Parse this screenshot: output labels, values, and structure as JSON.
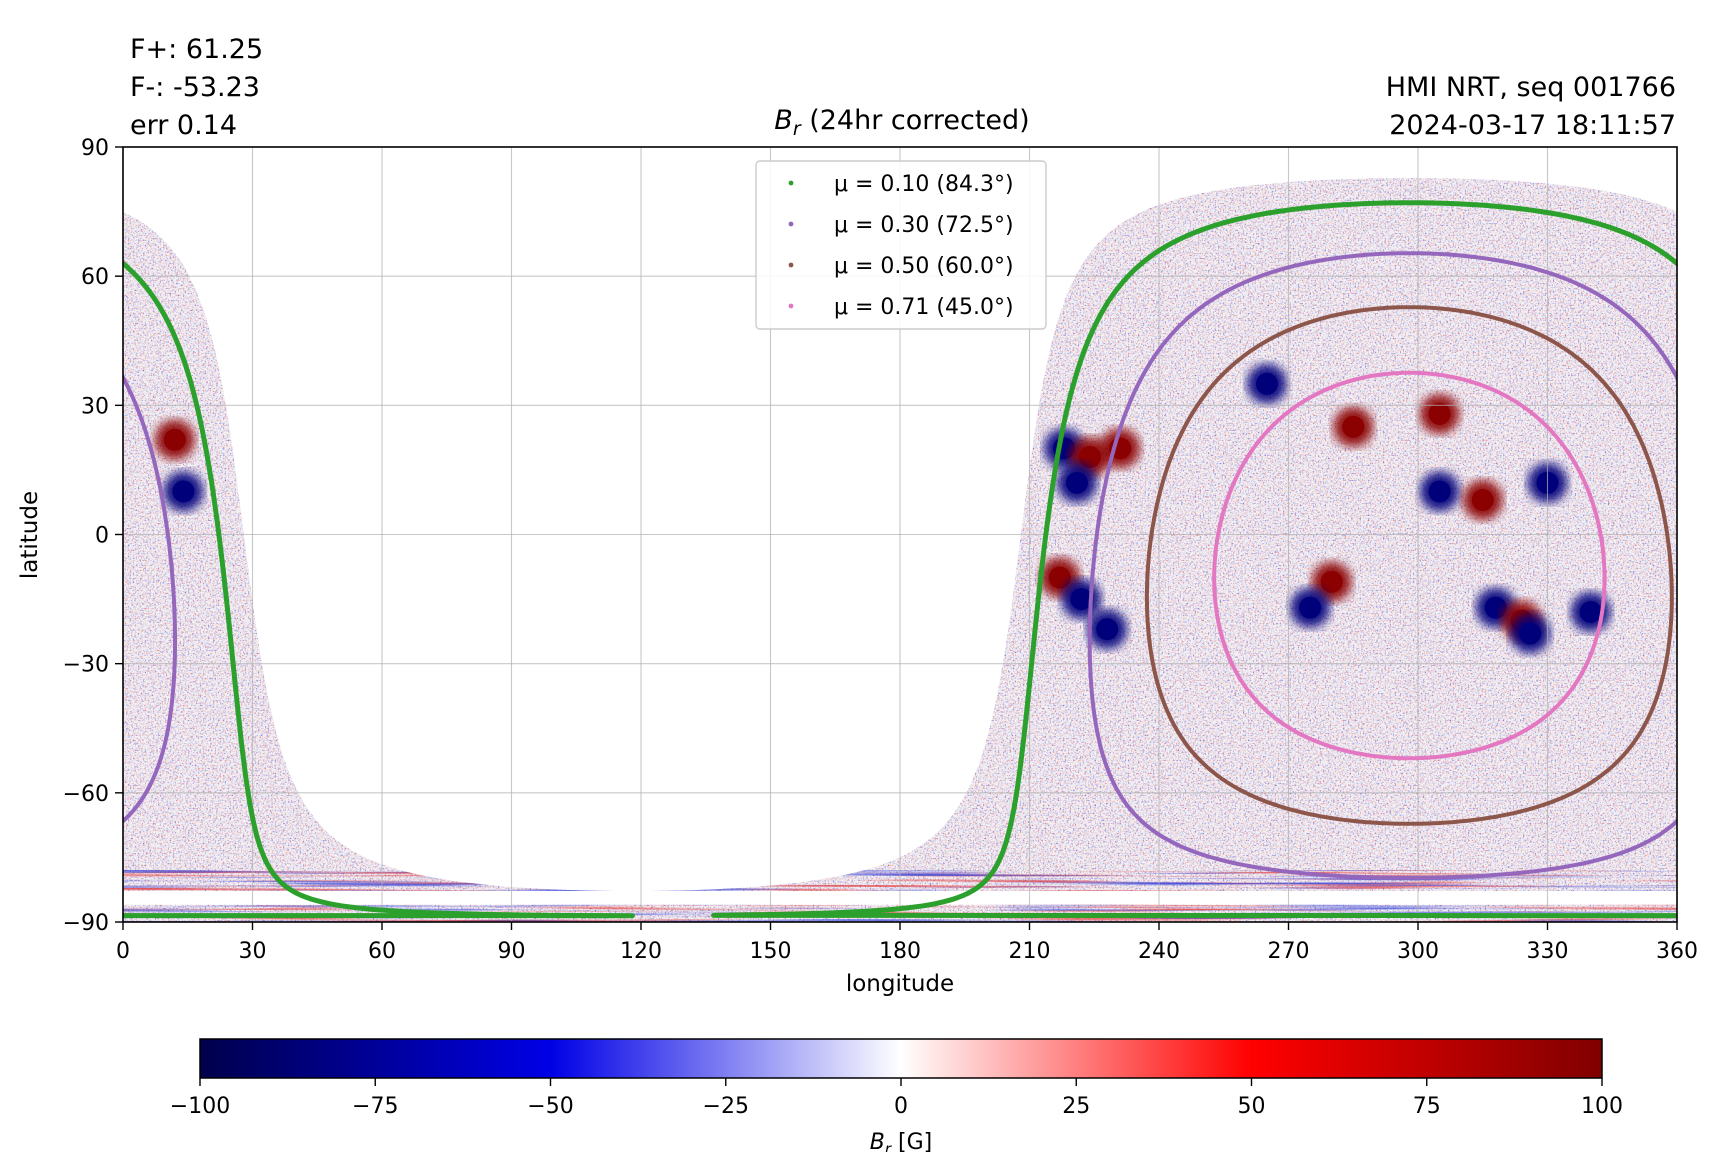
{
  "annotations": {
    "flux_plus": "F+: 61.25",
    "flux_minus": "F-: -53.23",
    "error": "err 0.14",
    "instrument": "HMI NRT, seq 001766",
    "timestamp": "2024-03-17 18:11:57"
  },
  "chart_data": {
    "type": "heatmap",
    "title": "B_r (24hr corrected)",
    "title_parts": {
      "main": "B",
      "sub": "r",
      "rest": " (24hr corrected)"
    },
    "xlabel": "longitude",
    "ylabel": "latitude",
    "xlim": [
      0,
      360
    ],
    "ylim": [
      -90,
      90
    ],
    "xticks": [
      0,
      30,
      60,
      90,
      120,
      150,
      180,
      210,
      240,
      270,
      300,
      330,
      360
    ],
    "yticks": [
      -90,
      -60,
      -30,
      0,
      30,
      60,
      90
    ],
    "ytick_labels": [
      "−90",
      "−60",
      "−30",
      "0",
      "30",
      "60",
      "90"
    ],
    "grid": true,
    "colormap": "seismic",
    "colorbar": {
      "label_main": "B",
      "label_sub": "r",
      "label_unit": " [G]",
      "range": [
        -100,
        100
      ],
      "ticks": [
        -100,
        -75,
        -50,
        -25,
        0,
        25,
        50,
        75,
        100
      ],
      "tick_labels": [
        "−100",
        "−75",
        "−50",
        "−25",
        "0",
        "25",
        "50",
        "75",
        "100"
      ]
    },
    "disk_center": {
      "lon": 298,
      "lat": -7.2
    },
    "series": [
      {
        "mu": 0.1,
        "name": "μ = 0.10 (84.3°)",
        "angle_deg": 84.3,
        "color": "#2ca02c"
      },
      {
        "mu": 0.3,
        "name": "μ = 0.30 (72.5°)",
        "angle_deg": 72.5,
        "color": "#9467bd"
      },
      {
        "mu": 0.5,
        "name": "μ = 0.50 (60.0°)",
        "angle_deg": 60.0,
        "color": "#8c564b"
      },
      {
        "mu": 0.71,
        "name": "μ = 0.71 (45.0°)",
        "angle_deg": 45.0,
        "color": "#e377c2"
      }
    ],
    "legend_position": "top-center",
    "active_regions": [
      {
        "lon": 218,
        "lat": 20,
        "sign": -1
      },
      {
        "lon": 224,
        "lat": 18,
        "sign": 1
      },
      {
        "lon": 231,
        "lat": 20,
        "sign": 1
      },
      {
        "lon": 221,
        "lat": 12,
        "sign": -1
      },
      {
        "lon": 217,
        "lat": -10,
        "sign": 1
      },
      {
        "lon": 222,
        "lat": -15,
        "sign": -1
      },
      {
        "lon": 228,
        "lat": -22,
        "sign": -1
      },
      {
        "lon": 12,
        "lat": 22,
        "sign": 1
      },
      {
        "lon": 14,
        "lat": 10,
        "sign": -1
      },
      {
        "lon": 305,
        "lat": 10,
        "sign": -1
      },
      {
        "lon": 315,
        "lat": 8,
        "sign": 1
      },
      {
        "lon": 330,
        "lat": 12,
        "sign": -1
      },
      {
        "lon": 318,
        "lat": -17,
        "sign": -1
      },
      {
        "lon": 324,
        "lat": -20,
        "sign": 1
      },
      {
        "lon": 326,
        "lat": -23,
        "sign": -1
      },
      {
        "lon": 280,
        "lat": -11,
        "sign": 1
      },
      {
        "lon": 275,
        "lat": -17,
        "sign": -1
      },
      {
        "lon": 340,
        "lat": -18,
        "sign": -1
      },
      {
        "lon": 285,
        "lat": 25,
        "sign": 1
      },
      {
        "lon": 265,
        "lat": 35,
        "sign": -1
      },
      {
        "lon": 305,
        "lat": 28,
        "sign": 1
      }
    ]
  }
}
